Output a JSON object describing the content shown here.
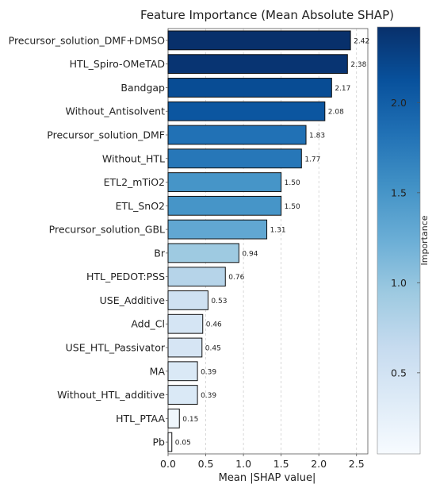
{
  "chart_data": {
    "type": "bar",
    "orientation": "horizontal",
    "title": "Feature Importance (Mean Absolute SHAP)",
    "xlabel": "Mean |SHAP value|",
    "ylabel": "",
    "xlim": [
      0,
      2.65
    ],
    "x_ticks": [
      0.0,
      0.5,
      1.0,
      1.5,
      2.0,
      2.5
    ],
    "x_tick_labels": [
      "0.0",
      "0.5",
      "1.0",
      "1.5",
      "2.0",
      "2.5"
    ],
    "grid": "vertical dashed",
    "categories": [
      "Precursor_solution_DMF+DMSO",
      "HTL_Spiro-OMeTAD",
      "Bandgap",
      "Without_Antisolvent",
      "Precursor_solution_DMF",
      "Without_HTL",
      "ETL2_mTiO2",
      "ETL_SnO2",
      "Precursor_solution_GBL",
      "Br",
      "HTL_PEDOT:PSS",
      "USE_Additive",
      "Add_Cl",
      "USE_HTL_Passivator",
      "MA",
      "Without_HTL_additive",
      "HTL_PTAA",
      "Pb"
    ],
    "values": [
      2.42,
      2.38,
      2.17,
      2.08,
      1.83,
      1.77,
      1.5,
      1.5,
      1.31,
      0.94,
      0.76,
      0.53,
      0.46,
      0.45,
      0.39,
      0.39,
      0.15,
      0.05
    ],
    "value_labels": [
      "2.42",
      "2.38",
      "2.17",
      "2.08",
      "1.83",
      "1.77",
      "1.50",
      "1.50",
      "1.31",
      "0.94",
      "0.76",
      "0.53",
      "0.46",
      "0.45",
      "0.39",
      "0.39",
      "0.15",
      "0.05"
    ],
    "colormap": "Blues",
    "colorbar": {
      "label": "Importance",
      "range": [
        0.05,
        2.42
      ],
      "ticks": [
        0.5,
        1.0,
        1.5,
        2.0
      ],
      "tick_labels": [
        "0.5",
        "1.0",
        "1.5",
        "2.0"
      ]
    }
  }
}
